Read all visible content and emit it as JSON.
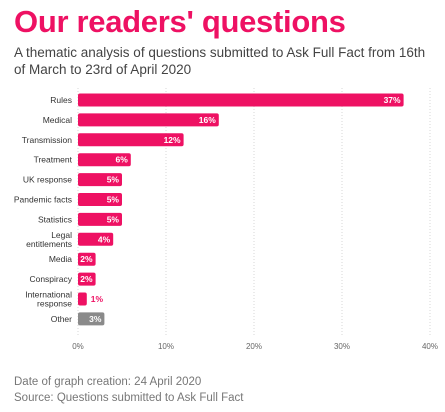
{
  "header": {
    "title": "Our readers' questions",
    "subtitle": "A thematic analysis of questions submitted to Ask Full Fact from 16th of March to 23rd of April 2020"
  },
  "footer": {
    "date": "Date of graph creation: 24 April 2020",
    "source": "Source: Questions submitted to Ask Full Fact"
  },
  "colors": {
    "accent": "#ee1163",
    "other": "#8a8a8a"
  },
  "chart_data": {
    "type": "bar",
    "orientation": "horizontal",
    "categories": [
      [
        "Rules"
      ],
      [
        "Medical"
      ],
      [
        "Transmission"
      ],
      [
        "Treatment"
      ],
      [
        "UK response"
      ],
      [
        "Pandemic facts"
      ],
      [
        "Statistics"
      ],
      [
        "Legal",
        "entitlements"
      ],
      [
        "Media"
      ],
      [
        "Conspiracy"
      ],
      [
        "International",
        "response"
      ],
      [
        "Other"
      ]
    ],
    "values": [
      37,
      16,
      12,
      6,
      5,
      5,
      5,
      4,
      2,
      2,
      1,
      3
    ],
    "labels": [
      "37%",
      "16%",
      "12%",
      "6%",
      "5%",
      "5%",
      "5%",
      "4%",
      "2%",
      "2%",
      "1%",
      "3%"
    ],
    "highlight_other": true,
    "xlim": [
      0,
      40
    ],
    "xticks": [
      0,
      10,
      20,
      30,
      40
    ],
    "xtick_labels": [
      "0%",
      "10%",
      "20%",
      "30%",
      "40%"
    ],
    "grid": "vertical"
  }
}
